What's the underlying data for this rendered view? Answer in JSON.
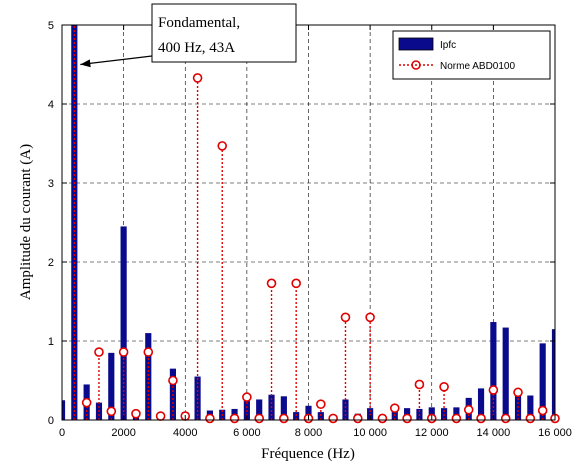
{
  "chart_data": {
    "type": "bar",
    "xlabel": "Fréquence (Hz)",
    "ylabel": "Amplitude du courant (A)",
    "xlim": [
      0,
      16000
    ],
    "ylim": [
      0,
      5
    ],
    "x_ticks": [
      0,
      2000,
      4000,
      6000,
      8000,
      10000,
      12000,
      14000,
      16000
    ],
    "x_tick_labels": [
      "0",
      "2000",
      "4000",
      "6 000",
      "8 000",
      "10 000",
      "12 000",
      "14 000",
      "16 000"
    ],
    "y_ticks": [
      0,
      1,
      2,
      3,
      4,
      5
    ],
    "y_tick_labels": [
      "0",
      "1",
      "2",
      "3",
      "4",
      "5"
    ],
    "grid": true,
    "legend_position": "top-right",
    "series": [
      {
        "name": "Ipfc",
        "kind": "bar",
        "color": "#0a0a8c",
        "x": [
          0,
          400,
          800,
          1200,
          1600,
          2000,
          2400,
          2800,
          3200,
          3600,
          4000,
          4400,
          4800,
          5200,
          5600,
          6000,
          6400,
          6800,
          7200,
          7600,
          8000,
          8400,
          8800,
          9200,
          9600,
          10000,
          10400,
          10800,
          11200,
          11600,
          12000,
          12400,
          12800,
          13200,
          13600,
          14000,
          14400,
          14800,
          15200,
          15600,
          16000
        ],
        "y": [
          0.25,
          5.0,
          0.45,
          0.22,
          0.85,
          2.45,
          0.1,
          1.1,
          0.04,
          0.65,
          0.1,
          0.55,
          0.12,
          0.13,
          0.14,
          0.24,
          0.26,
          0.32,
          0.3,
          0.1,
          0.18,
          0.1,
          0.05,
          0.26,
          0.08,
          0.15,
          0.05,
          0.17,
          0.15,
          0.14,
          0.16,
          0.15,
          0.16,
          0.28,
          0.4,
          1.24,
          1.17,
          0.33,
          0.31,
          0.97,
          1.15
        ]
      },
      {
        "name": "Norme ABD0100",
        "kind": "stem",
        "color": "#e00000",
        "x": [
          400,
          800,
          1200,
          1600,
          2000,
          2400,
          2800,
          3200,
          3600,
          4000,
          4400,
          4800,
          5200,
          5600,
          6000,
          6400,
          6800,
          7200,
          7600,
          8000,
          8400,
          8800,
          9200,
          9600,
          10000,
          10400,
          10800,
          11200,
          11600,
          12000,
          12400,
          12800,
          13200,
          13600,
          14000,
          14400,
          14800,
          15200,
          15600,
          16000
        ],
        "y": [
          5.0,
          0.22,
          0.86,
          0.11,
          0.86,
          0.08,
          0.86,
          0.05,
          0.5,
          0.05,
          4.33,
          0.02,
          3.47,
          0.02,
          0.29,
          0.02,
          1.73,
          0.02,
          1.73,
          0.02,
          0.2,
          0.02,
          1.3,
          0.02,
          1.3,
          0.02,
          0.15,
          0.02,
          0.45,
          0.02,
          0.42,
          0.02,
          0.13,
          0.02,
          0.38,
          0.02,
          0.35,
          0.02,
          0.12,
          0.02
        ]
      }
    ],
    "annotation": {
      "lines": [
        "Fondamental,",
        "400 Hz, 43A"
      ],
      "x": 400,
      "y": 4.5
    }
  }
}
